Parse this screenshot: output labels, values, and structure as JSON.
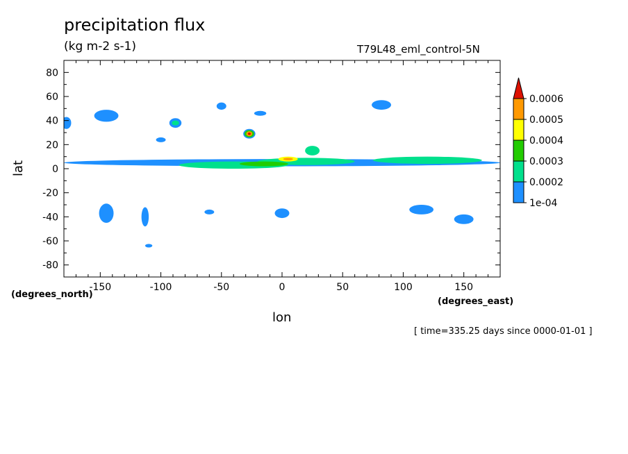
{
  "chart_data": {
    "type": "heatmap",
    "title": "precipitation flux",
    "units": "(kg m-2 s-1)",
    "case_label": "T79L48_eml_control-5N",
    "xlabel": "lon",
    "ylabel": "lat",
    "x_units_label": "(degrees_east)",
    "y_units_label": "(degrees_north)",
    "time_label": "[ time=335.25 days since 0000-01-01 ]",
    "xlim": [
      -180,
      180
    ],
    "ylim": [
      -90,
      90
    ],
    "x_ticks": [
      -150,
      -100,
      -50,
      0,
      50,
      100,
      150
    ],
    "x_tick_labels": [
      "-150",
      "-100",
      "-50",
      "0",
      "50",
      "100",
      "150"
    ],
    "y_ticks": [
      80,
      60,
      40,
      20,
      0,
      -20,
      -40,
      -60,
      -80
    ],
    "y_tick_labels": [
      "80",
      "60",
      "40",
      "20",
      "0",
      "-20",
      "-40",
      "-60",
      "-80"
    ],
    "colorbar": {
      "levels": [
        0.0001,
        0.0002,
        0.0003,
        0.0004,
        0.0005,
        0.0006
      ],
      "labels": [
        "1e-04",
        "0.0002",
        "0.0003",
        "0.0004",
        "0.0005",
        "0.0006"
      ],
      "colors": [
        "#1e90ff",
        "#00e08c",
        "#22cc00",
        "#ffff00",
        "#ff9900",
        "#dd1100"
      ],
      "extend": "max"
    },
    "features": [
      {
        "lon": 0,
        "lat": 5,
        "dlon": 180,
        "dlat": 3,
        "level": 1
      },
      {
        "lon": -40,
        "lat": 3,
        "dlon": 45,
        "dlat": 3,
        "level": 2
      },
      {
        "lon": 20,
        "lat": 6,
        "dlon": 40,
        "dlat": 3,
        "level": 2
      },
      {
        "lon": 120,
        "lat": 7,
        "dlon": 45,
        "dlat": 3,
        "level": 2
      },
      {
        "lon": -15,
        "lat": 4,
        "dlon": 20,
        "dlat": 2,
        "level": 3
      },
      {
        "lon": 5,
        "lat": 8,
        "dlon": 8,
        "dlat": 2,
        "level": 4
      },
      {
        "lon": 5,
        "lat": 8,
        "dlon": 4,
        "dlat": 1,
        "level": 5
      },
      {
        "lon": -27,
        "lat": 29,
        "dlon": 5,
        "dlat": 4,
        "level": 1
      },
      {
        "lon": -27,
        "lat": 29,
        "dlon": 4,
        "dlat": 3,
        "level": 3
      },
      {
        "lon": -27,
        "lat": 29,
        "dlon": 2.5,
        "dlat": 2,
        "level": 5
      },
      {
        "lon": -27,
        "lat": 29,
        "dlon": 1.2,
        "dlat": 1,
        "level": 6
      },
      {
        "lon": -50,
        "lat": 52,
        "dlon": 4,
        "dlat": 3,
        "level": 1
      },
      {
        "lon": -18,
        "lat": 46,
        "dlon": 5,
        "dlat": 2,
        "level": 1
      },
      {
        "lon": 82,
        "lat": 53,
        "dlon": 8,
        "dlat": 4,
        "level": 1
      },
      {
        "lon": -88,
        "lat": 38,
        "dlon": 5,
        "dlat": 4,
        "level": 1
      },
      {
        "lon": -88,
        "lat": 38,
        "dlon": 3,
        "dlat": 2,
        "level": 2
      },
      {
        "lon": -100,
        "lat": 24,
        "dlon": 4,
        "dlat": 2,
        "level": 1
      },
      {
        "lon": -145,
        "lat": 44,
        "dlon": 10,
        "dlat": 5,
        "level": 1
      },
      {
        "lon": -178,
        "lat": 38,
        "dlon": 4,
        "dlat": 5,
        "level": 1
      },
      {
        "lon": 25,
        "lat": 15,
        "dlon": 6,
        "dlat": 4,
        "level": 2
      },
      {
        "lon": -145,
        "lat": -37,
        "dlon": 6,
        "dlat": 8,
        "level": 1
      },
      {
        "lon": -113,
        "lat": -40,
        "dlon": 3,
        "dlat": 8,
        "level": 1
      },
      {
        "lon": -60,
        "lat": -36,
        "dlon": 4,
        "dlat": 2,
        "level": 1
      },
      {
        "lon": 0,
        "lat": -37,
        "dlon": 6,
        "dlat": 4,
        "level": 1
      },
      {
        "lon": 115,
        "lat": -34,
        "dlon": 10,
        "dlat": 4,
        "level": 1
      },
      {
        "lon": 150,
        "lat": -42,
        "dlon": 8,
        "dlat": 4,
        "level": 1
      },
      {
        "lon": -110,
        "lat": -64,
        "dlon": 3,
        "dlat": 1.5,
        "level": 1
      }
    ]
  }
}
